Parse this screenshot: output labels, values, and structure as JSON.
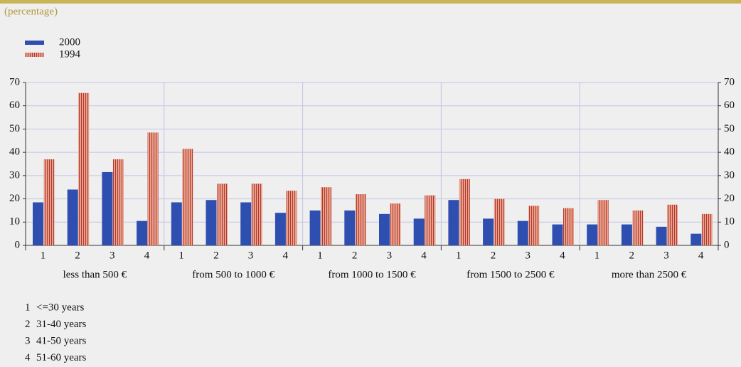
{
  "chart_data": {
    "type": "grouped-bar",
    "subtitle": "(percentage)",
    "groups": [
      "less than 500 €",
      "from 500 to 1000 €",
      "from 1000 to 1500 €",
      "from 1500 to 2500 €",
      "more than 2500 €"
    ],
    "categories": [
      "1",
      "2",
      "3",
      "4"
    ],
    "series": [
      {
        "name": "2000",
        "color": "#2e4fb0",
        "values": [
          [
            18.5,
            24,
            31.5,
            10.5
          ],
          [
            18.5,
            19.5,
            18.5,
            14
          ],
          [
            15,
            15,
            13.5,
            11.5
          ],
          [
            19.5,
            11.5,
            10.5,
            9
          ],
          [
            9,
            9,
            8,
            5
          ]
        ]
      },
      {
        "name": "1994",
        "color": "#e8a08c",
        "stripe": "#b03a2e",
        "values": [
          [
            37,
            65.5,
            37,
            48.5
          ],
          [
            41.5,
            26.5,
            26.5,
            23.5
          ],
          [
            25,
            22,
            18,
            21.5
          ],
          [
            28.5,
            20,
            17,
            16
          ],
          [
            19.5,
            15,
            17.5,
            13.5
          ]
        ]
      }
    ],
    "ylim": [
      0,
      70
    ],
    "yticks": [
      0,
      10,
      20,
      30,
      40,
      50,
      60,
      70
    ],
    "y2ticks": [
      0,
      10,
      20,
      30,
      40,
      50,
      60,
      70
    ],
    "grid": true,
    "notes": [
      {
        "key": "1",
        "text": "<=30 years"
      },
      {
        "key": "2",
        "text": "31-40 years"
      },
      {
        "key": "3",
        "text": "41-50 years"
      },
      {
        "key": "4",
        "text": "51-60 years"
      }
    ]
  }
}
